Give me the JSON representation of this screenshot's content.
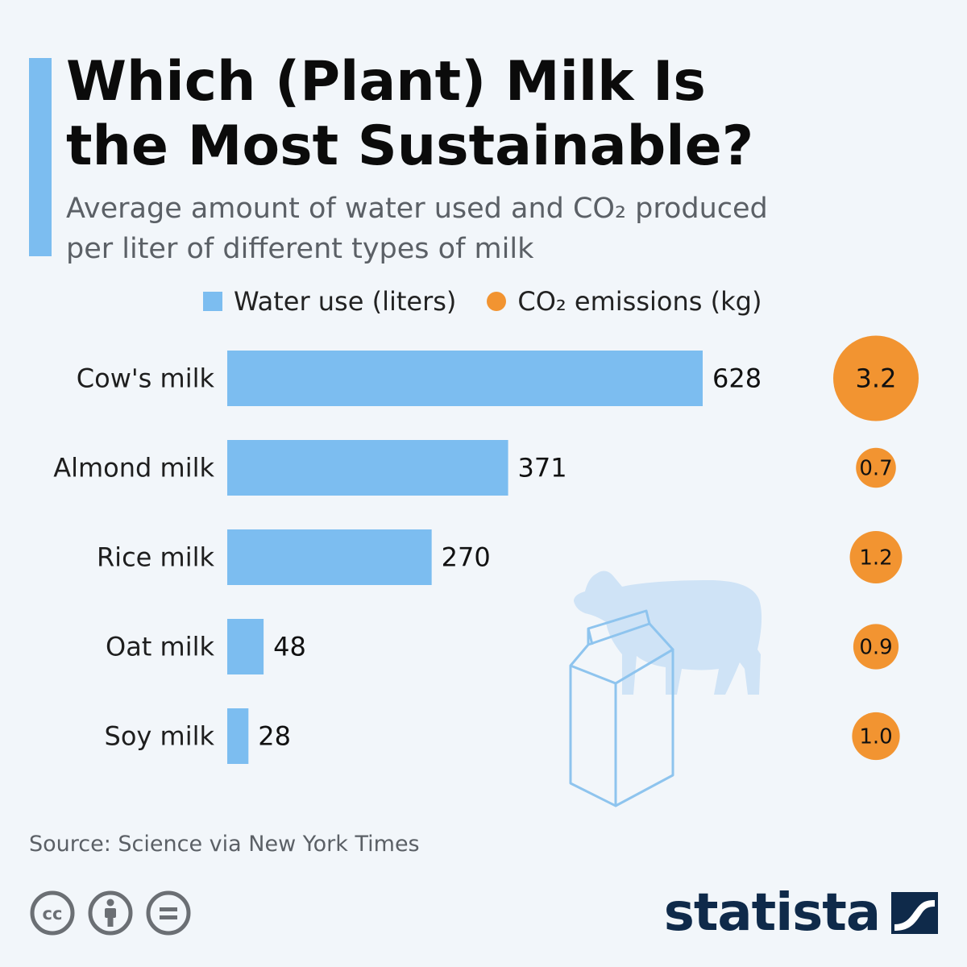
{
  "header": {
    "title_line1": "Which (Plant) Milk Is",
    "title_line2": "the Most Sustainable?",
    "subtitle_line1": "Average amount of water used and CO₂ produced",
    "subtitle_line2": "per liter of different types of milk"
  },
  "legend": {
    "water_label": "Water use (liters)",
    "co2_label": "CO₂ emissions (kg)"
  },
  "colors": {
    "water": "#7cbdf0",
    "co2": "#f29431",
    "illustration": "#cfe3f6"
  },
  "chart_data": {
    "type": "bar",
    "categories": [
      "Cow's milk",
      "Almond milk",
      "Rice milk",
      "Oat milk",
      "Soy milk"
    ],
    "series": [
      {
        "name": "Water use (liters)",
        "values": [
          628,
          371,
          270,
          48,
          28
        ]
      },
      {
        "name": "CO₂ emissions (kg)",
        "values": [
          3.2,
          0.7,
          1.2,
          0.9,
          1.0
        ]
      }
    ],
    "value_labels": [
      "628",
      "371",
      "270",
      "48",
      "28"
    ],
    "co2_labels": [
      "3.2",
      "0.7",
      "1.2",
      "0.9",
      "1.0"
    ],
    "legend_position": "top",
    "grid": false
  },
  "footer": {
    "source": "Source: Science via New York Times",
    "brand": "statista",
    "licence_icons": [
      "cc-icon",
      "attribution-icon",
      "no-derivatives-icon"
    ]
  }
}
